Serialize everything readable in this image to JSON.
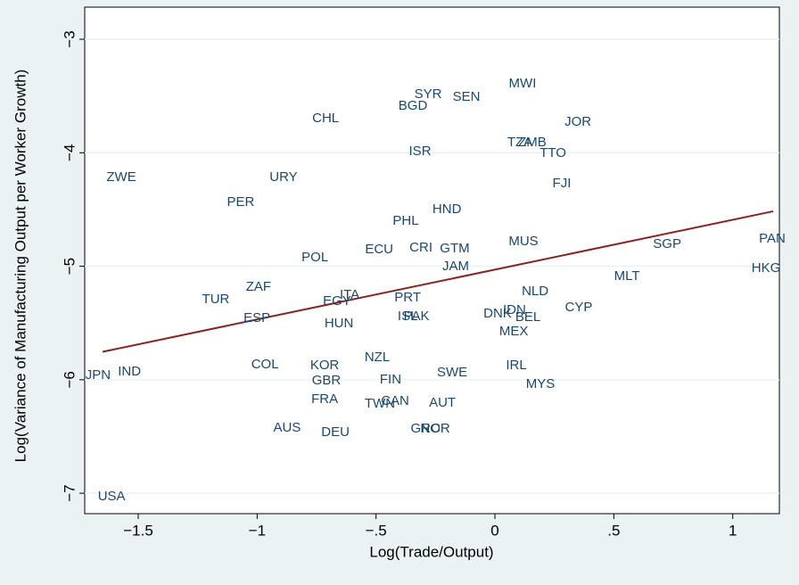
{
  "chart_data": {
    "type": "scatter",
    "x_label": "Log(Trade/Output)",
    "y_label": "Log(Variance of Manufacturing Output per Worker Growth)",
    "labels": [
      "MWI",
      "SYR",
      "SEN",
      "BGD",
      "CHL",
      "JOR",
      "TZA",
      "ZMB",
      "ISR",
      "TTO",
      "ZWE",
      "URY",
      "FJI",
      "PER",
      "HND",
      "PHL",
      "PAN",
      "MUS",
      "SGP",
      "CRI",
      "GTM",
      "ECU",
      "POL",
      "JAM",
      "HKG",
      "MLT",
      "ZAF",
      "NLD",
      "ITA",
      "EGY",
      "TUR",
      "PRT",
      "CYP",
      "IDN",
      "DNK",
      "BEL",
      "ESP",
      "ISL",
      "PAK",
      "HUN",
      "MEX",
      "NZL",
      "COL",
      "KOR",
      "IRL",
      "SWE",
      "JPN",
      "IND",
      "GBR",
      "FIN",
      "MYS",
      "FRA",
      "CAN",
      "TWN",
      "AUT",
      "AUS",
      "GRC",
      "NOR",
      "DEU",
      "USA"
    ],
    "x": [
      0.116,
      -0.281,
      -0.12,
      -0.345,
      -0.712,
      0.349,
      0.105,
      0.157,
      -0.315,
      0.244,
      -1.571,
      -0.889,
      0.281,
      -1.069,
      -0.202,
      -0.375,
      1.166,
      0.12,
      0.724,
      -0.311,
      -0.169,
      -0.487,
      -0.757,
      -0.165,
      1.14,
      0.555,
      -0.994,
      0.169,
      -0.611,
      -0.664,
      -1.174,
      -0.367,
      0.352,
      0.082,
      0.011,
      0.139,
      -1.001,
      -0.367,
      -0.33,
      -0.656,
      0.079,
      -0.495,
      -0.967,
      -0.716,
      0.09,
      -0.18,
      -1.669,
      -1.537,
      -0.709,
      -0.439,
      0.191,
      -0.716,
      -0.42,
      -0.484,
      -0.221,
      -0.874,
      -0.292,
      -0.251,
      -0.671,
      -1.612
    ],
    "y": [
      -3.393,
      -3.487,
      -3.511,
      -3.589,
      -3.699,
      -3.731,
      -3.911,
      -3.911,
      -3.99,
      -4.005,
      -4.218,
      -4.218,
      -4.273,
      -4.438,
      -4.5,
      -4.603,
      -4.76,
      -4.783,
      -4.807,
      -4.838,
      -4.846,
      -4.854,
      -4.925,
      -5.003,
      -5.019,
      -5.09,
      -5.184,
      -5.223,
      -5.255,
      -5.309,
      -5.294,
      -5.278,
      -5.364,
      -5.388,
      -5.419,
      -5.451,
      -5.459,
      -5.443,
      -5.443,
      -5.506,
      -5.577,
      -5.804,
      -5.867,
      -5.875,
      -5.875,
      -5.938,
      -5.962,
      -5.93,
      -6.009,
      -6.001,
      -6.04,
      -6.174,
      -6.189,
      -6.213,
      -6.205,
      -6.425,
      -6.433,
      -6.433,
      -6.464,
      -7.03
    ],
    "fit_line": {
      "x": [
        -1.65,
        1.17
      ],
      "y": [
        -5.754,
        -4.516
      ],
      "color": "#8b2323"
    },
    "color": "#1a476f",
    "xlim": [
      -1.725,
      1.196
    ],
    "ylim": [
      -7.18,
      -2.717
    ],
    "xticks": [
      {
        "value": -1.5,
        "label": "−1.5"
      },
      {
        "value": -1,
        "label": "−1"
      },
      {
        "value": -0.5,
        "label": "−.5"
      },
      0,
      {
        "value": 0.5,
        "label": ".5"
      },
      1
    ],
    "yticks": [
      {
        "value": -7,
        "label": "−7"
      },
      {
        "value": -6,
        "label": "−6"
      },
      {
        "value": -5,
        "label": "−5"
      },
      {
        "value": -4,
        "label": "−4"
      },
      {
        "value": -3,
        "label": "−3"
      }
    ],
    "grid": true
  }
}
